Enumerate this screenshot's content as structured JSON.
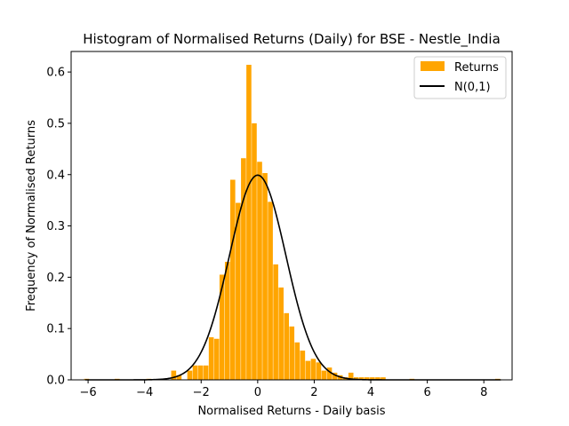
{
  "chart_data": {
    "type": "bar",
    "title": "Histogram of Normalised Returns (Daily) for BSE - Nestle_India",
    "xlabel": "Normalised Returns - Daily basis",
    "ylabel": "Frequency of Normalised Returns",
    "xlim": [
      -6.6,
      9.0
    ],
    "ylim": [
      0,
      0.64
    ],
    "xticks": [
      -6,
      -4,
      -2,
      0,
      2,
      4,
      6,
      8
    ],
    "xtick_labels": [
      "−6",
      "−4",
      "−2",
      "0",
      "2",
      "4",
      "6",
      "8"
    ],
    "yticks": [
      0.0,
      0.1,
      0.2,
      0.3,
      0.4,
      0.5,
      0.6
    ],
    "ytick_labels": [
      "0.0",
      "0.1",
      "0.2",
      "0.3",
      "0.4",
      "0.5",
      "0.6"
    ],
    "grid": false,
    "legend_position": "top-right",
    "bar_color": "#FFA500",
    "bin_width": 0.2,
    "series": [
      {
        "name": "Returns",
        "kind": "histogram",
        "color": "#FFA500",
        "bins": [
          {
            "x": -6.04,
            "value": 0.002
          },
          {
            "x": -4.96,
            "value": 0.002
          },
          {
            "x": -3.84,
            "value": 0.002
          },
          {
            "x": -2.96,
            "value": 0.018
          },
          {
            "x": -2.77,
            "value": 0.009
          },
          {
            "x": -2.58,
            "value": 0.0
          },
          {
            "x": -2.39,
            "value": 0.018
          },
          {
            "x": -2.2,
            "value": 0.028
          },
          {
            "x": -2.01,
            "value": 0.028
          },
          {
            "x": -1.82,
            "value": 0.028
          },
          {
            "x": -1.63,
            "value": 0.083
          },
          {
            "x": -1.44,
            "value": 0.08
          },
          {
            "x": -1.25,
            "value": 0.205
          },
          {
            "x": -1.06,
            "value": 0.23
          },
          {
            "x": -0.87,
            "value": 0.39
          },
          {
            "x": -0.68,
            "value": 0.345
          },
          {
            "x": -0.49,
            "value": 0.432
          },
          {
            "x": -0.3,
            "value": 0.614
          },
          {
            "x": -0.11,
            "value": 0.5
          },
          {
            "x": 0.08,
            "value": 0.425
          },
          {
            "x": 0.27,
            "value": 0.403
          },
          {
            "x": 0.46,
            "value": 0.347
          },
          {
            "x": 0.65,
            "value": 0.225
          },
          {
            "x": 0.84,
            "value": 0.18
          },
          {
            "x": 1.03,
            "value": 0.13
          },
          {
            "x": 1.22,
            "value": 0.104
          },
          {
            "x": 1.41,
            "value": 0.073
          },
          {
            "x": 1.6,
            "value": 0.057
          },
          {
            "x": 1.79,
            "value": 0.037
          },
          {
            "x": 1.98,
            "value": 0.041
          },
          {
            "x": 2.17,
            "value": 0.034
          },
          {
            "x": 2.36,
            "value": 0.018
          },
          {
            "x": 2.55,
            "value": 0.024
          },
          {
            "x": 2.74,
            "value": 0.014
          },
          {
            "x": 2.93,
            "value": 0.009
          },
          {
            "x": 3.12,
            "value": 0.005
          },
          {
            "x": 3.31,
            "value": 0.014
          },
          {
            "x": 3.5,
            "value": 0.005
          },
          {
            "x": 3.69,
            "value": 0.005
          },
          {
            "x": 3.88,
            "value": 0.005
          },
          {
            "x": 4.07,
            "value": 0.005
          },
          {
            "x": 4.26,
            "value": 0.005
          },
          {
            "x": 4.45,
            "value": 0.005
          },
          {
            "x": 5.47,
            "value": 0.002
          },
          {
            "x": 8.5,
            "value": 0.002
          }
        ]
      },
      {
        "name": "N(0,1)",
        "kind": "line",
        "color": "#000000",
        "function": "standard_normal_pdf",
        "x_range": [
          -6.1,
          8.6
        ]
      }
    ]
  }
}
